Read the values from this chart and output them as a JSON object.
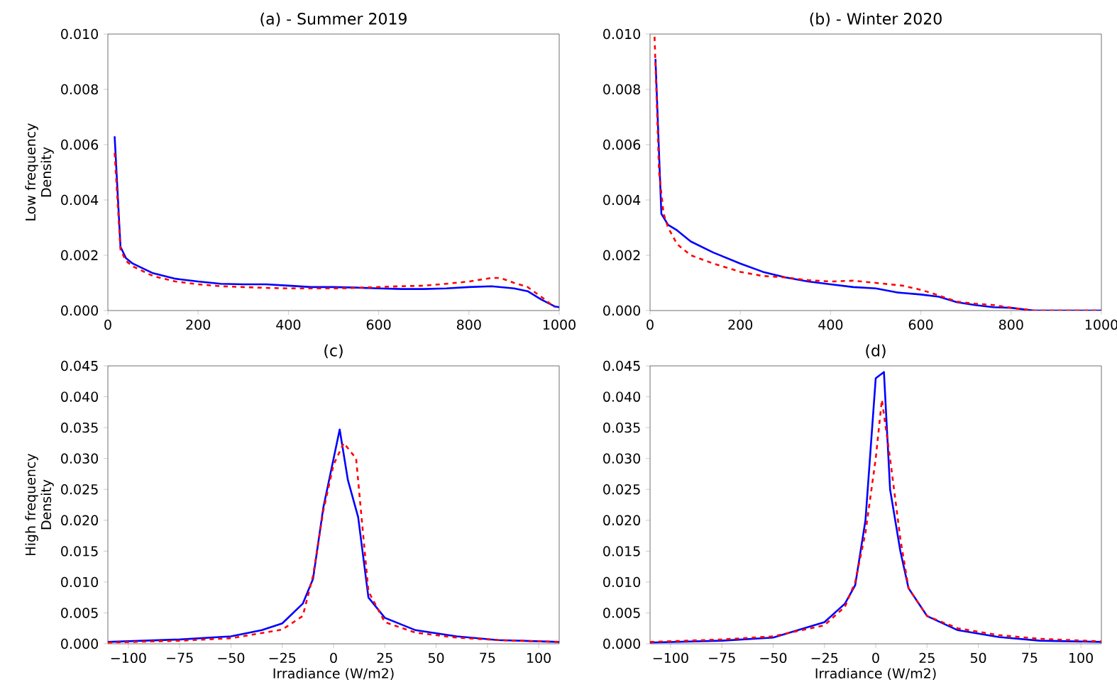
{
  "chart_data": [
    {
      "type": "line",
      "title": "(a) - Summer 2019",
      "ylabel": "Low frequency Density",
      "xlim": [
        0,
        1000
      ],
      "ylim": [
        0,
        0.01
      ],
      "xticks": [
        0,
        200,
        400,
        600,
        800,
        1000
      ],
      "yticks": [
        {
          "value": 0,
          "label": "0.000"
        },
        {
          "value": 0.002,
          "label": "0.002"
        },
        {
          "value": 0.004,
          "label": "0.004"
        },
        {
          "value": 0.006,
          "label": "0.006"
        },
        {
          "value": 0.008,
          "label": "0.008"
        },
        {
          "value": 0.01,
          "label": "0.010"
        }
      ],
      "series": [
        {
          "color": "#0000ff",
          "line_style": "solid",
          "x": [
            15,
            28,
            40,
            55,
            100,
            150,
            200,
            250,
            300,
            350,
            400,
            450,
            500,
            550,
            600,
            650,
            700,
            750,
            800,
            850,
            900,
            930,
            960,
            990,
            1000
          ],
          "values": [
            0.0063,
            0.0023,
            0.0019,
            0.0017,
            0.00135,
            0.00115,
            0.00105,
            0.00097,
            0.00095,
            0.00095,
            0.0009,
            0.00085,
            0.00085,
            0.00083,
            0.0008,
            0.00078,
            0.00078,
            0.0008,
            0.00085,
            0.00088,
            0.0008,
            0.0007,
            0.0004,
            0.00015,
            0.00012
          ]
        },
        {
          "color": "#ff0000",
          "line_style": "dashed",
          "x": [
            15,
            28,
            40,
            55,
            100,
            150,
            200,
            250,
            300,
            350,
            400,
            450,
            500,
            550,
            600,
            650,
            700,
            750,
            800,
            850,
            870,
            900,
            930,
            960,
            990
          ],
          "values": [
            0.0057,
            0.0022,
            0.0018,
            0.0016,
            0.00125,
            0.00105,
            0.00095,
            0.00088,
            0.00085,
            0.00082,
            0.0008,
            0.0008,
            0.0008,
            0.00082,
            0.00085,
            0.00088,
            0.0009,
            0.00097,
            0.00105,
            0.00118,
            0.00118,
            0.001,
            0.00085,
            0.0005,
            0.00012
          ]
        }
      ]
    },
    {
      "type": "line",
      "title": "(b) - Winter 2020",
      "xlim": [
        0,
        1000
      ],
      "ylim": [
        0,
        0.01
      ],
      "xticks": [
        0,
        200,
        400,
        600,
        800,
        1000
      ],
      "yticks": [
        {
          "value": 0,
          "label": "0.000"
        },
        {
          "value": 0.002,
          "label": "0.002"
        },
        {
          "value": 0.004,
          "label": "0.004"
        },
        {
          "value": 0.006,
          "label": "0.006"
        },
        {
          "value": 0.008,
          "label": "0.008"
        },
        {
          "value": 0.01,
          "label": "0.010"
        }
      ],
      "series": [
        {
          "color": "#0000ff",
          "line_style": "solid",
          "x": [
            12,
            25,
            40,
            60,
            90,
            140,
            200,
            250,
            300,
            350,
            400,
            450,
            500,
            550,
            600,
            640,
            680,
            720,
            760,
            800,
            850,
            1000
          ],
          "values": [
            0.0091,
            0.0035,
            0.0031,
            0.0029,
            0.0025,
            0.0021,
            0.0017,
            0.0014,
            0.0012,
            0.00105,
            0.00095,
            0.00085,
            0.0008,
            0.00065,
            0.00058,
            0.0005,
            0.0003,
            0.0002,
            0.00012,
            0.0001,
            0,
            0
          ]
        },
        {
          "color": "#ff0000",
          "line_style": "dashed",
          "x": [
            10,
            20,
            30,
            40,
            60,
            90,
            140,
            200,
            250,
            300,
            350,
            400,
            450,
            500,
            560,
            600,
            630,
            680,
            720,
            760,
            800,
            850,
            1000
          ],
          "values": [
            0.0099,
            0.005,
            0.0035,
            0.003,
            0.0024,
            0.002,
            0.0017,
            0.0014,
            0.00125,
            0.0012,
            0.0011,
            0.00105,
            0.00108,
            0.001,
            0.0009,
            0.00075,
            0.0006,
            0.00032,
            0.00025,
            0.0002,
            0.0001,
            0,
            0
          ]
        }
      ]
    },
    {
      "type": "line",
      "title": "(c)",
      "xlabel": "Irradiance (W/m2)",
      "ylabel": "High frequency Density",
      "xlim": [
        -110,
        110
      ],
      "ylim": [
        0,
        0.045
      ],
      "xticks": [
        {
          "value": -100,
          "label": "−100"
        },
        {
          "value": -75,
          "label": "−75"
        },
        {
          "value": -50,
          "label": "−50"
        },
        {
          "value": -25,
          "label": "−25"
        },
        0,
        25,
        50,
        75,
        100
      ],
      "yticks": [
        {
          "value": 0,
          "label": "0.000"
        },
        {
          "value": 0.005,
          "label": "0.005"
        },
        {
          "value": 0.01,
          "label": "0.010"
        },
        {
          "value": 0.015,
          "label": "0.015"
        },
        {
          "value": 0.02,
          "label": "0.020"
        },
        {
          "value": 0.025,
          "label": "0.025"
        },
        {
          "value": 0.03,
          "label": "0.030"
        },
        {
          "value": 0.035,
          "label": "0.035"
        },
        {
          "value": 0.04,
          "label": "0.040"
        },
        {
          "value": 0.045,
          "label": "0.045"
        }
      ],
      "series": [
        {
          "color": "#0000ff",
          "line_style": "solid",
          "x": [
            -110,
            -75,
            -50,
            -35,
            -25,
            -15,
            -10,
            -5,
            3,
            7,
            12,
            17,
            25,
            40,
            60,
            80,
            110
          ],
          "values": [
            0.0003,
            0.0007,
            0.0012,
            0.0022,
            0.0033,
            0.0065,
            0.0105,
            0.022,
            0.0347,
            0.0265,
            0.0205,
            0.0075,
            0.0042,
            0.0022,
            0.0012,
            0.0006,
            0.0003
          ]
        },
        {
          "color": "#ff0000",
          "line_style": "dashed",
          "x": [
            -110,
            -75,
            -50,
            -25,
            -15,
            -10,
            -5,
            0,
            5,
            11,
            17,
            25,
            40,
            60,
            80,
            110
          ],
          "values": [
            0.0002,
            0.0005,
            0.0009,
            0.0023,
            0.0045,
            0.011,
            0.0215,
            0.029,
            0.0325,
            0.03,
            0.0085,
            0.0035,
            0.0018,
            0.001,
            0.0006,
            0.0003
          ]
        }
      ]
    },
    {
      "type": "line",
      "title": "(d)",
      "xlabel": "Irradiance (W/m2)",
      "xlim": [
        -110,
        110
      ],
      "ylim": [
        0,
        0.045
      ],
      "xticks": [
        {
          "value": -100,
          "label": "−100"
        },
        {
          "value": -75,
          "label": "−75"
        },
        {
          "value": -50,
          "label": "−50"
        },
        {
          "value": -25,
          "label": "−25"
        },
        0,
        25,
        50,
        75,
        100
      ],
      "yticks": [
        {
          "value": 0,
          "label": "0.000"
        },
        {
          "value": 0.005,
          "label": "0.005"
        },
        {
          "value": 0.01,
          "label": "0.010"
        },
        {
          "value": 0.015,
          "label": "0.015"
        },
        {
          "value": 0.02,
          "label": "0.020"
        },
        {
          "value": 0.025,
          "label": "0.025"
        },
        {
          "value": 0.03,
          "label": "0.030"
        },
        {
          "value": 0.035,
          "label": "0.035"
        },
        {
          "value": 0.04,
          "label": "0.040"
        },
        {
          "value": 0.045,
          "label": "0.045"
        }
      ],
      "series": [
        {
          "color": "#0000ff",
          "line_style": "solid",
          "x": [
            -110,
            -75,
            -50,
            -25,
            -15,
            -10,
            -5,
            0,
            4,
            7,
            12,
            16,
            25,
            40,
            60,
            80,
            110
          ],
          "values": [
            0.0002,
            0.0005,
            0.001,
            0.0035,
            0.0065,
            0.0095,
            0.02,
            0.043,
            0.044,
            0.025,
            0.015,
            0.009,
            0.0045,
            0.0022,
            0.0011,
            0.0005,
            0.0003
          ]
        },
        {
          "color": "#ff0000",
          "line_style": "dashed",
          "x": [
            -110,
            -75,
            -50,
            -25,
            -15,
            -10,
            -5,
            0,
            3,
            7,
            12,
            16,
            25,
            40,
            60,
            80,
            110
          ],
          "values": [
            0.0003,
            0.0007,
            0.0012,
            0.003,
            0.006,
            0.01,
            0.018,
            0.03,
            0.0395,
            0.03,
            0.017,
            0.009,
            0.0045,
            0.0025,
            0.0014,
            0.0008,
            0.0004
          ]
        }
      ]
    }
  ]
}
